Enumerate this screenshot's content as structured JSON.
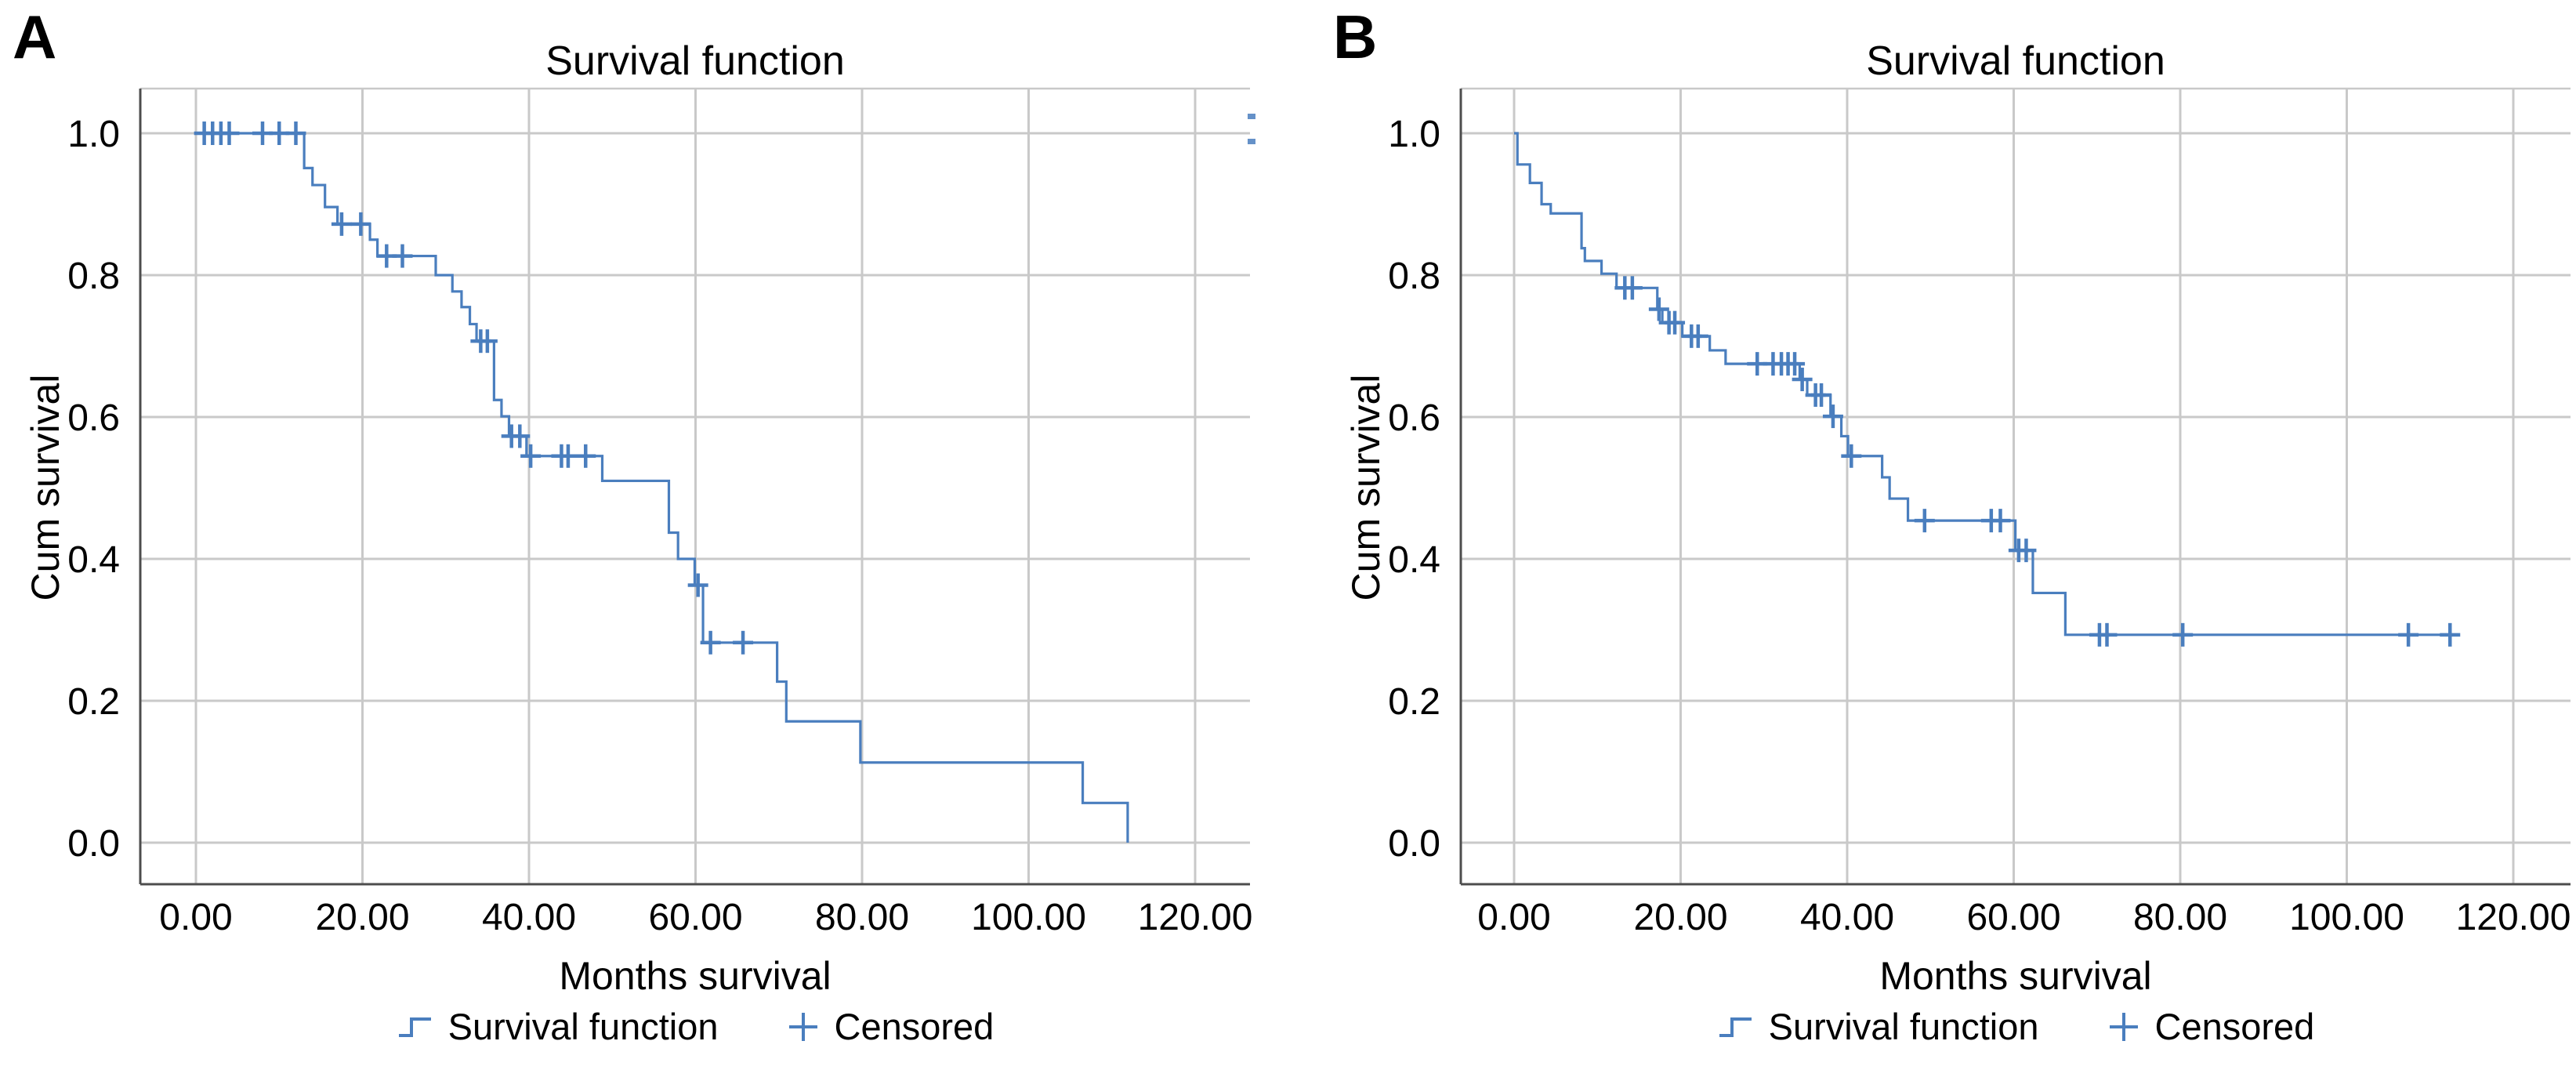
{
  "figure": {
    "panel_letters": [
      "A",
      "B"
    ],
    "background": "#FFFFFF"
  },
  "colors": {
    "curve_blue": "#4A7EBE",
    "gridline_gray": "#C9C9C9",
    "axis_gray": "#4D4D4D",
    "text_black": "#000000"
  },
  "chart_data": [
    {
      "type": "line",
      "subtype": "kaplan-meier-step",
      "panel": "A",
      "title": "Survival function",
      "xlabel": "Months survival",
      "ylabel": "Cum survival",
      "xlim": [
        0,
        126.6
      ],
      "ylim": [
        -0.06,
        1.06
      ],
      "grid": true,
      "legend": [
        {
          "icon": "step-line-icon",
          "label": "Survival function"
        },
        {
          "icon": "plus-icon",
          "label": "Censored"
        }
      ],
      "x_ticks": [
        0,
        20,
        40,
        60,
        80,
        100,
        120
      ],
      "x_tick_labels": [
        "0.00",
        "20.00",
        "40.00",
        "60.00",
        "80.00",
        "100.00",
        "120.00"
      ],
      "y_ticks": [
        1.0,
        0.8,
        0.6,
        0.4,
        0.2,
        0.0
      ],
      "y_tick_labels": [
        "1.0",
        "0.8",
        "0.6",
        "0.4",
        "0.2",
        "0.0"
      ],
      "series": [
        {
          "name": "Survival function",
          "start": [
            0,
            1.0
          ],
          "steps": [
            [
              13,
              0.951
            ],
            [
              14,
              0.927
            ],
            [
              15.5,
              0.896
            ],
            [
              17,
              0.872
            ],
            [
              20.9,
              0.85
            ],
            [
              21.8,
              0.827
            ],
            [
              28.8,
              0.8
            ],
            [
              30.8,
              0.777
            ],
            [
              31.9,
              0.755
            ],
            [
              32.9,
              0.731
            ],
            [
              33.7,
              0.707
            ],
            [
              35.8,
              0.624
            ],
            [
              36.7,
              0.601
            ],
            [
              37.6,
              0.573
            ],
            [
              39.7,
              0.545
            ],
            [
              48.8,
              0.51
            ],
            [
              56.8,
              0.437
            ],
            [
              57.9,
              0.4
            ],
            [
              59.9,
              0.363
            ],
            [
              60.9,
              0.282
            ],
            [
              69.8,
              0.227
            ],
            [
              70.9,
              0.171
            ],
            [
              79.8,
              0.113
            ],
            [
              106.5,
              0.056
            ],
            [
              111.9,
              0.0
            ]
          ],
          "end_t": 111.9
        }
      ],
      "censored_points": [
        [
          1,
          1.0
        ],
        [
          2,
          1.0
        ],
        [
          3,
          1.0
        ],
        [
          4,
          1.0
        ],
        [
          8,
          1.0
        ],
        [
          10,
          1.0
        ],
        [
          12,
          1.0
        ],
        [
          17.5,
          0.872
        ],
        [
          19.8,
          0.872
        ],
        [
          22.9,
          0.827
        ],
        [
          24.8,
          0.827
        ],
        [
          34.2,
          0.707
        ],
        [
          35.0,
          0.707
        ],
        [
          37.9,
          0.573
        ],
        [
          38.9,
          0.573
        ],
        [
          40.2,
          0.545
        ],
        [
          43.9,
          0.545
        ],
        [
          44.7,
          0.545
        ],
        [
          46.8,
          0.545
        ],
        [
          60.3,
          0.363
        ],
        [
          61.8,
          0.282
        ],
        [
          65.7,
          0.282
        ]
      ]
    },
    {
      "type": "line",
      "subtype": "kaplan-meier-step",
      "panel": "B",
      "title": "Survival function",
      "xlabel": "Months survival",
      "ylabel": "Cum survival",
      "xlim": [
        0,
        126.6
      ],
      "ylim": [
        -0.06,
        1.06
      ],
      "grid": true,
      "legend": [
        {
          "icon": "step-line-icon",
          "label": "Survival function"
        },
        {
          "icon": "plus-icon",
          "label": "Censored"
        }
      ],
      "x_ticks": [
        0,
        20,
        40,
        60,
        80,
        100,
        120
      ],
      "x_tick_labels": [
        "0.00",
        "20.00",
        "40.00",
        "60.00",
        "80.00",
        "100.00",
        "120.00"
      ],
      "y_ticks": [
        1.0,
        0.8,
        0.6,
        0.4,
        0.2,
        0.0
      ],
      "y_tick_labels": [
        "1.0",
        "0.8",
        "0.6",
        "0.4",
        "0.2",
        "0.0"
      ],
      "series": [
        {
          "name": "Survival function",
          "start": [
            0,
            1.0
          ],
          "steps": [
            [
              0.4,
              0.956
            ],
            [
              1.9,
              0.93
            ],
            [
              3.3,
              0.9
            ],
            [
              4.4,
              0.887
            ],
            [
              8.1,
              0.838
            ],
            [
              8.5,
              0.82
            ],
            [
              10.5,
              0.802
            ],
            [
              12.3,
              0.782
            ],
            [
              17.2,
              0.752
            ],
            [
              17.8,
              0.733
            ],
            [
              20.2,
              0.714
            ],
            [
              23.5,
              0.694
            ],
            [
              25.4,
              0.675
            ],
            [
              34.3,
              0.653
            ],
            [
              35.2,
              0.631
            ],
            [
              38.0,
              0.601
            ],
            [
              39.3,
              0.573
            ],
            [
              40.1,
              0.545
            ],
            [
              44.2,
              0.515
            ],
            [
              45.1,
              0.485
            ],
            [
              47.3,
              0.454
            ],
            [
              60.2,
              0.412
            ],
            [
              62.3,
              0.352
            ],
            [
              66.2,
              0.293
            ]
          ],
          "end_t": 113.3
        }
      ],
      "censored_points": [
        [
          13.3,
          0.782
        ],
        [
          14.2,
          0.782
        ],
        [
          17.4,
          0.752
        ],
        [
          18.6,
          0.733
        ],
        [
          19.3,
          0.733
        ],
        [
          21.3,
          0.714
        ],
        [
          22.1,
          0.714
        ],
        [
          29.2,
          0.675
        ],
        [
          31.1,
          0.675
        ],
        [
          32.1,
          0.675
        ],
        [
          32.9,
          0.675
        ],
        [
          33.7,
          0.675
        ],
        [
          34.6,
          0.653
        ],
        [
          36.2,
          0.631
        ],
        [
          36.9,
          0.631
        ],
        [
          38.3,
          0.601
        ],
        [
          40.5,
          0.545
        ],
        [
          49.3,
          0.454
        ],
        [
          57.3,
          0.454
        ],
        [
          58.4,
          0.454
        ],
        [
          60.6,
          0.412
        ],
        [
          61.5,
          0.412
        ],
        [
          70.3,
          0.293
        ],
        [
          71.2,
          0.293
        ],
        [
          80.3,
          0.293
        ],
        [
          107.4,
          0.293
        ],
        [
          112.4,
          0.293
        ]
      ]
    }
  ]
}
